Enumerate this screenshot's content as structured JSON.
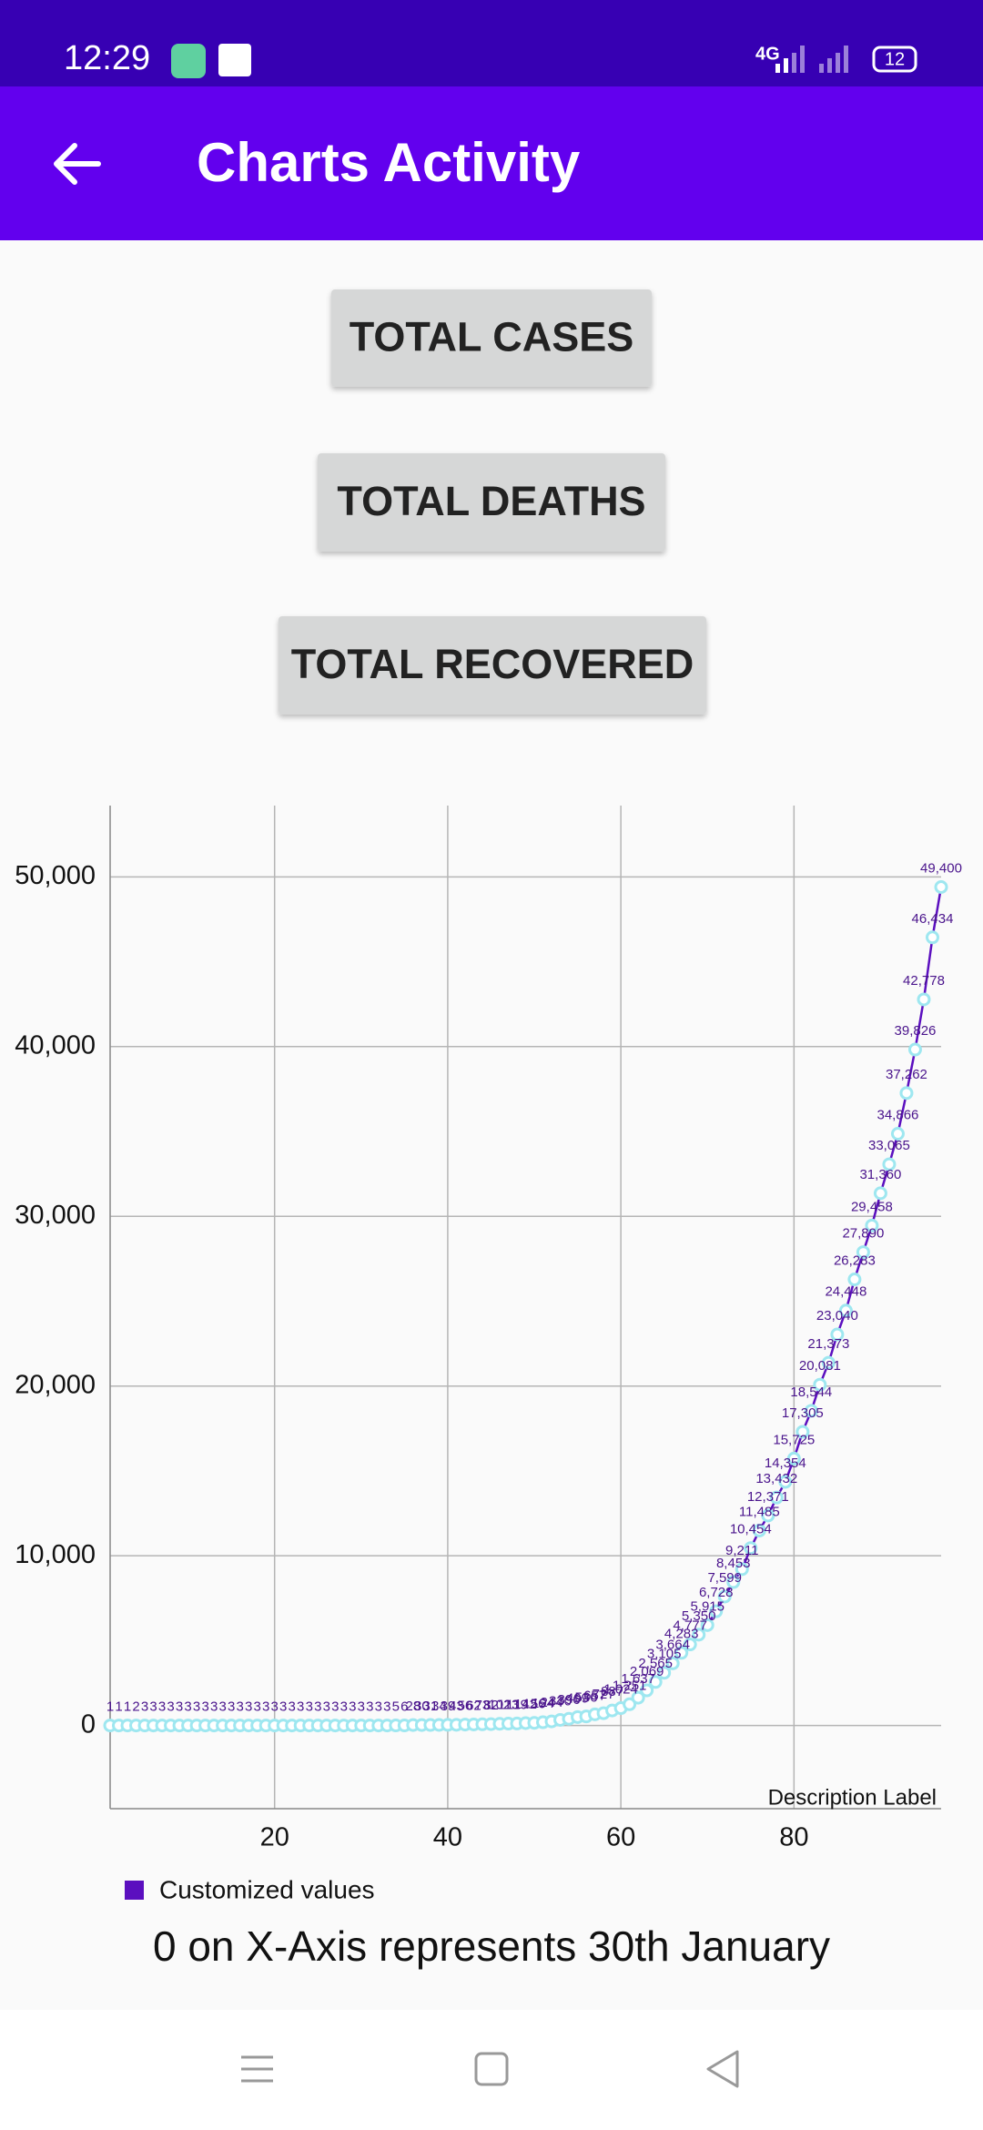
{
  "status_bar": {
    "time": "12:29",
    "network": "4G",
    "battery": "12"
  },
  "app_bar": {
    "title": "Charts Activity"
  },
  "buttons": [
    "TOTAL CASES",
    "TOTAL DEATHS",
    "TOTAL RECOVERED"
  ],
  "chart_data": {
    "type": "line",
    "description": "Description Label",
    "x": [
      1,
      2,
      3,
      4,
      5,
      6,
      7,
      8,
      9,
      10,
      11,
      12,
      13,
      14,
      15,
      16,
      17,
      18,
      19,
      20,
      21,
      22,
      23,
      24,
      25,
      26,
      27,
      28,
      29,
      30,
      31,
      32,
      33,
      34,
      35,
      36,
      37,
      38,
      39,
      40,
      41,
      42,
      43,
      44,
      45,
      46,
      47,
      48,
      49,
      50,
      51,
      52,
      53,
      54,
      55,
      56,
      57,
      58,
      59,
      60,
      61,
      62,
      63,
      64,
      65,
      66,
      67,
      68,
      69,
      70,
      71,
      72,
      73,
      74,
      75,
      76,
      77,
      78,
      79,
      80,
      81,
      82,
      83,
      84,
      85,
      86,
      87,
      88,
      89,
      90,
      91,
      92,
      93,
      94,
      95,
      96,
      97
    ],
    "series": [
      {
        "name": "Customized values",
        "color": "#5b0fbf",
        "marker_color": "#9ee7f0",
        "values": [
          1,
          1,
          1,
          2,
          3,
          3,
          3,
          3,
          3,
          3,
          3,
          3,
          3,
          3,
          3,
          3,
          3,
          3,
          3,
          3,
          3,
          3,
          3,
          3,
          3,
          3,
          3,
          3,
          3,
          3,
          3,
          3,
          3,
          5,
          6,
          28,
          30,
          31,
          34,
          39,
          43,
          56,
          62,
          73,
          82,
          102,
          113,
          119,
          142,
          156,
          194,
          244,
          330,
          396,
          499,
          536,
          657,
          727,
          887,
          1024,
          1251,
          1637,
          2069,
          2565,
          3105,
          3664,
          4283,
          4777,
          5350,
          5915,
          6728,
          7599,
          8453,
          9211,
          10454,
          11485,
          12371,
          13432,
          14354,
          15725,
          17305,
          18544,
          20081,
          21373,
          23040,
          24448,
          26283,
          27890,
          29458,
          31360,
          33065,
          34866,
          37262,
          39826,
          42778,
          46434,
          49400
        ],
        "value_labels": [
          "1",
          "1",
          "1",
          "2",
          "3",
          "3",
          "3",
          "3",
          "3",
          "3",
          "3",
          "3",
          "3",
          "3",
          "3",
          "3",
          "3",
          "3",
          "3",
          "3",
          "3",
          "3",
          "3",
          "3",
          "3",
          "3",
          "3",
          "3",
          "3",
          "3",
          "3",
          "3",
          "3",
          "5",
          "6",
          "28",
          "30",
          "31",
          "34",
          "39",
          "43",
          "56",
          "62",
          "73",
          "82",
          "102",
          "113",
          "119",
          "142",
          "156",
          "194",
          "244",
          "330",
          "396",
          "499",
          "536",
          "657",
          "727",
          "887",
          "1,024",
          "1,251",
          "1,637",
          "2,069",
          "2,565",
          "3,105",
          "3,664",
          "4,283",
          "4,777",
          "5,350",
          "5,915",
          "6,728",
          "7,599",
          "8,453",
          "9,211",
          "10,454",
          "11,485",
          "12,371",
          "13,432",
          "14,354",
          "15,725",
          "17,305",
          "18,544",
          "20,081",
          "21,373",
          "23,040",
          "24,448",
          "26,283",
          "27,890",
          "29,458",
          "31,360",
          "33,065",
          "34,866",
          "37,262",
          "39,826",
          "42,778",
          "46,434",
          "49,400"
        ]
      }
    ],
    "xlim": [
      1,
      97
    ],
    "xticks": [
      20,
      40,
      60,
      80
    ],
    "ylim": [
      -4900,
      54200
    ],
    "yticks": [
      0,
      {
        "value": 10000,
        "label": "10,000"
      },
      {
        "value": 20000,
        "label": "20,000"
      },
      {
        "value": 30000,
        "label": "30,000"
      },
      {
        "value": 40000,
        "label": "40,000"
      },
      {
        "value": 50000,
        "label": "50,000"
      }
    ],
    "grid": true
  },
  "caption": "0 on X-Axis represents 30th January"
}
